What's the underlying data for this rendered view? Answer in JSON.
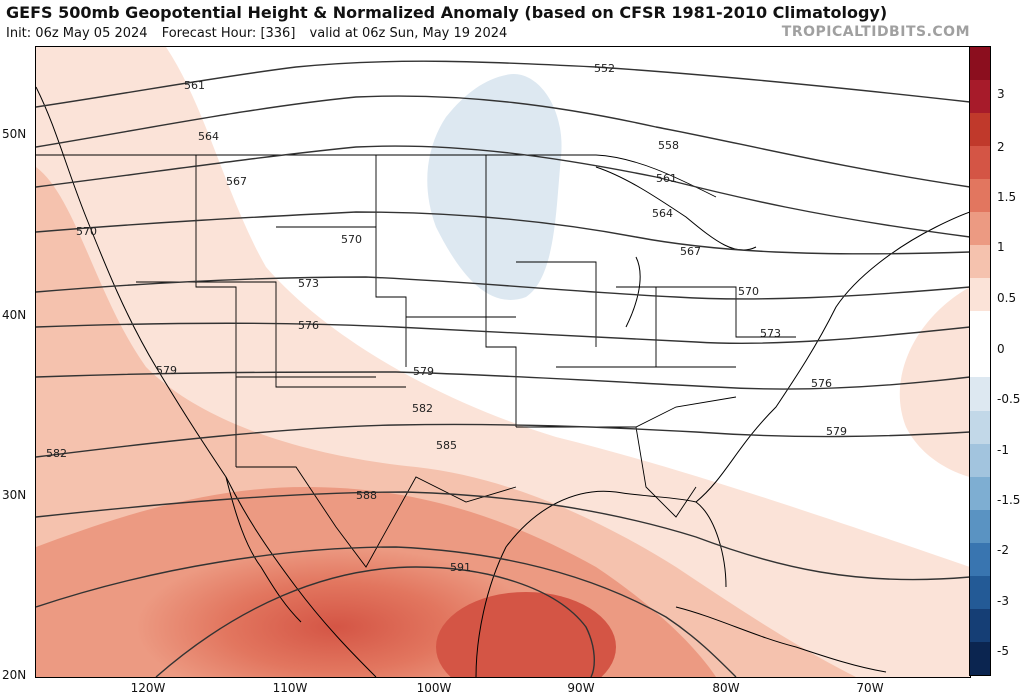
{
  "header": {
    "title": "GEFS 500mb Geopotential Height & Normalized Anomaly (based on CFSR 1981-2010 Climatology)",
    "init": "Init: 06z May 05 2024",
    "forecast_hour": "Forecast Hour: [336]",
    "valid": "valid at 06z Sun, May 19 2024",
    "brand": "TROPICALTIDBITS.COM"
  },
  "axes": {
    "latitudes": [
      "50N",
      "40N",
      "30N",
      "20N"
    ],
    "longitudes": [
      "120W",
      "110W",
      "100W",
      "90W",
      "80W",
      "70W"
    ]
  },
  "colorbar": {
    "ticks": [
      "3",
      "2",
      "1.5",
      "1",
      "0.5",
      "0",
      "-0.5",
      "-1",
      "-1.5",
      "-2",
      "-3",
      "-5"
    ],
    "colors": [
      "#8b0e1e",
      "#a71b2a",
      "#c0392b",
      "#d45545",
      "#e2765f",
      "#ec9a82",
      "#f5c2ae",
      "#fbe3d8",
      "#ffffff",
      "#ffffff",
      "#dde8f1",
      "#c2d8e8",
      "#a2c4de",
      "#7eaed2",
      "#5a93c2",
      "#3975b0",
      "#235a96",
      "#153e75",
      "#0b2550"
    ]
  },
  "contours": {
    "labels": [
      "561",
      "564",
      "567",
      "570",
      "573",
      "576",
      "579",
      "582",
      "585",
      "588",
      "591",
      "552",
      "558"
    ]
  }
}
